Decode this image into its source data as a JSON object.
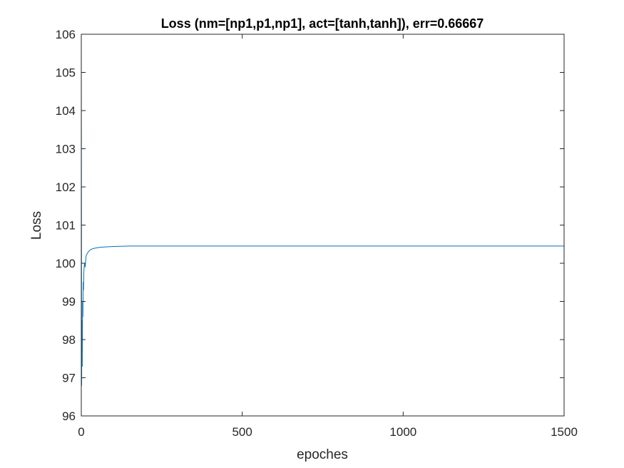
{
  "chart_data": {
    "type": "line",
    "title": "Loss (nm=[np1,p1,np1], act=[tanh,tanh]), err=0.66667",
    "xlabel": "epoches",
    "ylabel": "Loss",
    "xlim": [
      0,
      1500
    ],
    "ylim": [
      96,
      106
    ],
    "xticks": [
      0,
      500,
      1000,
      1500
    ],
    "yticks": [
      96,
      97,
      98,
      99,
      100,
      101,
      102,
      103,
      104,
      105,
      106
    ],
    "xtick_labels": [
      "0",
      "500",
      "1000",
      "1500"
    ],
    "ytick_labels": [
      "96",
      "97",
      "98",
      "99",
      "100",
      "101",
      "102",
      "103",
      "104",
      "105",
      "106"
    ],
    "grid": false,
    "line_color": "#0072BD",
    "series": [
      {
        "x": [
          0,
          1,
          2,
          3,
          4,
          5,
          6,
          7,
          8,
          10,
          12,
          15,
          18,
          22,
          27,
          35,
          45,
          60,
          80,
          100,
          150,
          200,
          300,
          400,
          500,
          700,
          1000,
          1500
        ],
        "values": [
          105.8,
          96.8,
          98.5,
          97.3,
          99.0,
          98.6,
          99.5,
          99.3,
          99.8,
          100.0,
          99.9,
          100.2,
          100.25,
          100.3,
          100.35,
          100.38,
          100.4,
          100.42,
          100.43,
          100.44,
          100.45,
          100.45,
          100.45,
          100.45,
          100.45,
          100.45,
          100.45,
          100.45
        ]
      }
    ]
  }
}
